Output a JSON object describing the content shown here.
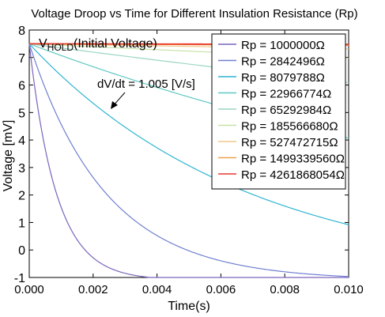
{
  "chart_data": {
    "type": "line",
    "title": "Voltage Droop vs Time for Different Insulation Resistance (Rp)",
    "xlabel": "Time(s)",
    "ylabel": "Voltage [mV]",
    "xlim": [
      0,
      0.01
    ],
    "ylim": [
      -1,
      8
    ],
    "xticks": [
      "0.000",
      "0.002",
      "0.004",
      "0.006",
      "0.008",
      "0.010"
    ],
    "yticks": [
      "-1",
      "0",
      "1",
      "2",
      "3",
      "4",
      "5",
      "6",
      "7",
      "8"
    ],
    "grid": false,
    "legend_position": "top-right",
    "initial_voltage": 7.5,
    "floor_voltage": -1,
    "vhold_label": {
      "main": "V",
      "sub": "HOLD",
      "rest": "(Initial Voltage)"
    },
    "slope_annotation": "dV/dt = 1.005 [V/s]",
    "series": [
      {
        "name": "Rp = 1000000Ω",
        "color": "#7a64bb",
        "tau": 0.00085
      },
      {
        "name": "Rp = 2842496Ω",
        "color": "#6f7fd0",
        "tau": 0.0024
      },
      {
        "name": "Rp = 8079788Ω",
        "color": "#2fb4d2",
        "tau": 0.0069
      },
      {
        "name": "Rp = 22966774Ω",
        "color": "#5fc8c2",
        "tau": 0.0196
      },
      {
        "name": "Rp = 65292984Ω",
        "color": "#9bd6c2",
        "tau": 0.0557
      },
      {
        "name": "Rp = 185566680Ω",
        "color": "#c8e2a6",
        "tau": 0.158
      },
      {
        "name": "Rp = 527472715Ω",
        "color": "#f1c98a",
        "tau": 0.45
      },
      {
        "name": "Rp = 1499339560Ω",
        "color": "#f0a050",
        "tau": 1.28
      },
      {
        "name": "Rp = 4261868054Ω",
        "color": "#e8392a",
        "tau": 3.63
      }
    ]
  }
}
